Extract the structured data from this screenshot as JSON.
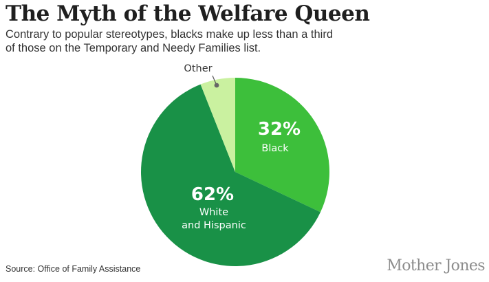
{
  "header": {
    "title": "The Myth of the Welfare Queen",
    "subtitle_line1": "Contrary to popular stereotypes, blacks make up less than a third",
    "subtitle_line2": "of those on the Temporary and Needy Families list."
  },
  "footer": {
    "source": "Source: Office of Family Assistance",
    "brand": "Mother Jones"
  },
  "chart_data": {
    "type": "pie",
    "title": "The Myth of the Welfare Queen",
    "slices": [
      {
        "label": "Black",
        "value": 32,
        "value_label": "32%",
        "color": "#3dbf3b"
      },
      {
        "label": "White and Hispanic",
        "value": 62,
        "value_label": "62%",
        "color": "#199147"
      },
      {
        "label": "Other",
        "value": 6,
        "value_label": "",
        "color": "#caf1a0"
      }
    ],
    "start": "12 o'clock",
    "direction": "clockwise"
  }
}
